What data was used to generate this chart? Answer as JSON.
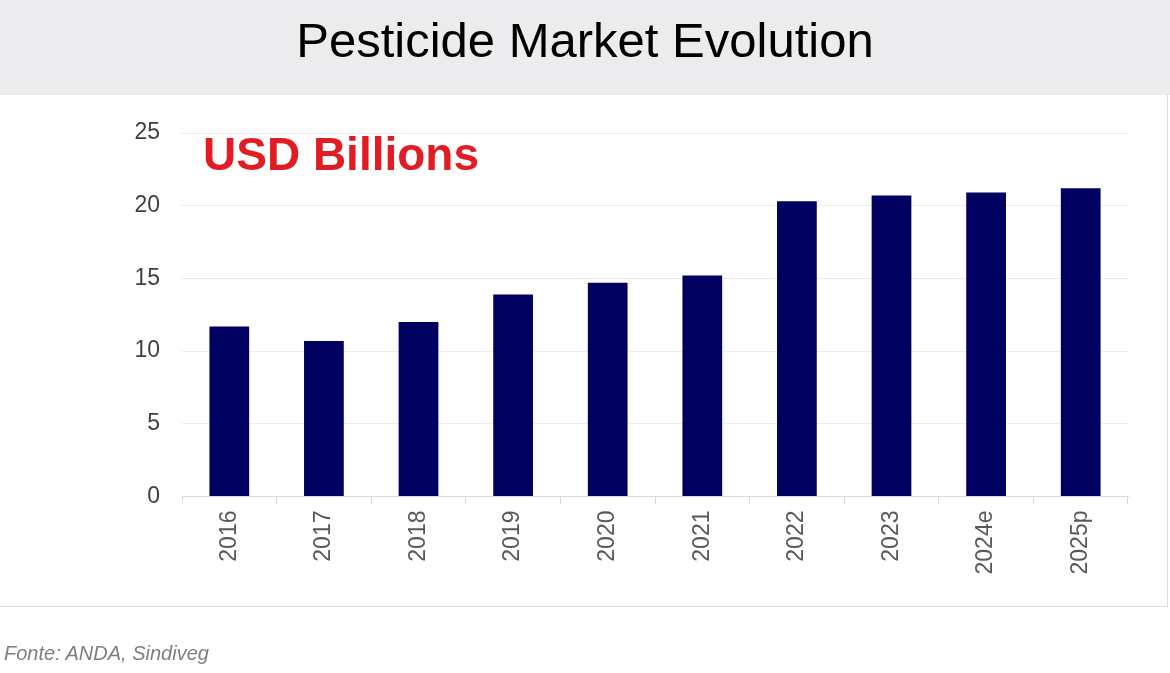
{
  "chart_data": {
    "type": "bar",
    "title": "Pesticide Market Evolution",
    "ylabel": "USD Billions",
    "categories": [
      "2016",
      "2017",
      "2018",
      "2019",
      "2020",
      "2021",
      "2022",
      "2023",
      "2024e",
      "2025p"
    ],
    "values": [
      11.7,
      10.7,
      12.0,
      13.9,
      14.7,
      15.2,
      20.3,
      20.7,
      20.9,
      21.2
    ],
    "color": "#000060",
    "ylim": [
      0,
      25
    ],
    "yticks": [
      0,
      5,
      10,
      15,
      20,
      25
    ],
    "grid": "y",
    "annotations": [
      "Fonte: ANDA, Sindiveg"
    ]
  }
}
